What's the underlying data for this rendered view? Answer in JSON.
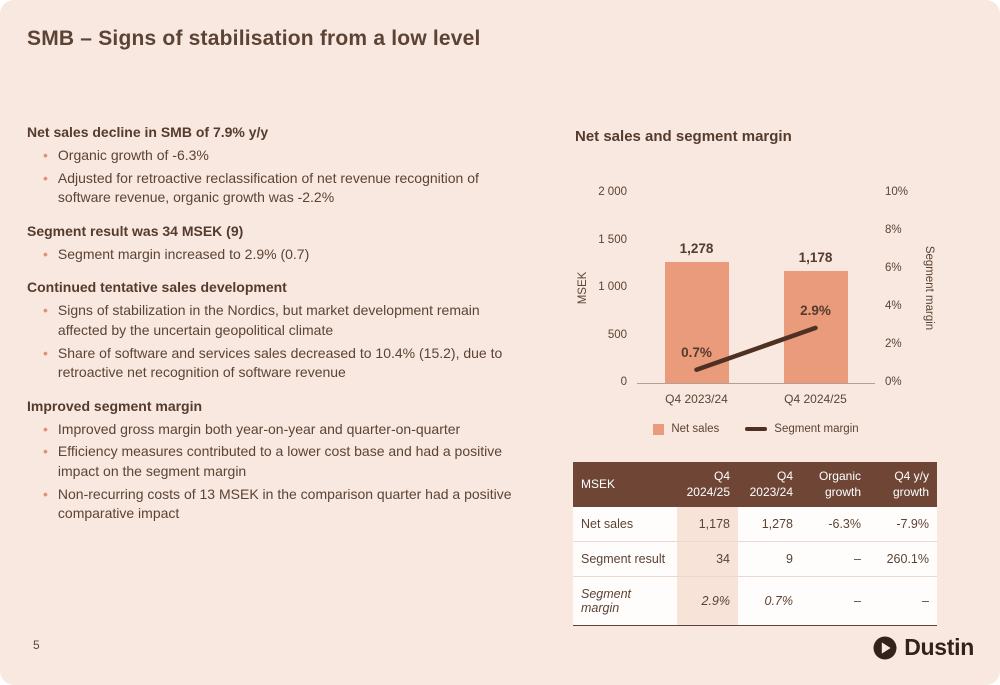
{
  "slide": {
    "title": "SMB – Signs of stabilisation from a low level",
    "page_number": "5"
  },
  "content": {
    "sections": [
      {
        "heading": "Net sales decline in SMB of 7.9% y/y",
        "bullets": [
          "Organic growth of -6.3%",
          "Adjusted for retroactive reclassification of net revenue recognition of software revenue, organic growth was -2.2%"
        ]
      },
      {
        "heading": "Segment result was 34 MSEK (9)",
        "bullets": [
          "Segment margin increased to 2.9% (0.7)"
        ]
      },
      {
        "heading": "Continued tentative sales development",
        "bullets": [
          "Signs of stabilization in the Nordics, but market development remain affected by the uncertain geopolitical climate",
          "Share of software and services sales decreased to 10.4% (15.2), due to retroactive net recognition of software revenue"
        ]
      },
      {
        "heading": "Improved segment margin",
        "bullets": [
          "Improved gross margin both year-on-year and quarter-on-quarter",
          "Efficiency measures contributed to a lower cost base and had a positive impact on the segment margin",
          "Non-recurring costs of 13 MSEK in the comparison quarter had a positive comparative impact"
        ]
      }
    ]
  },
  "chart_data": {
    "type": "bar",
    "title": "Net sales and segment margin",
    "categories": [
      "Q4 2023/24",
      "Q4 2024/25"
    ],
    "series": [
      {
        "name": "Net sales",
        "type": "bar",
        "axis": "left",
        "values": [
          1278,
          1178
        ],
        "value_labels": [
          "1,278",
          "1,178"
        ],
        "color": "#ea9b7c"
      },
      {
        "name": "Segment margin",
        "type": "line",
        "axis": "right",
        "values": [
          0.7,
          2.9
        ],
        "value_labels": [
          "0.7%",
          "2.9%"
        ],
        "color": "#4e3123"
      }
    ],
    "left_axis": {
      "title": "MSEK",
      "min": 0,
      "max": 2000,
      "ticks": [
        {
          "value": 0,
          "label": "0"
        },
        {
          "value": 500,
          "label": "500"
        },
        {
          "value": 1000,
          "label": "1 000"
        },
        {
          "value": 1500,
          "label": "1 500"
        },
        {
          "value": 2000,
          "label": "2 000"
        }
      ]
    },
    "right_axis": {
      "title": "Segment margin",
      "min": 0,
      "max": 10,
      "ticks": [
        {
          "value": 0,
          "label": "0%"
        },
        {
          "value": 2,
          "label": "2%"
        },
        {
          "value": 4,
          "label": "4%"
        },
        {
          "value": 6,
          "label": "6%"
        },
        {
          "value": 8,
          "label": "8%"
        },
        {
          "value": 10,
          "label": "10%"
        }
      ]
    },
    "legend": [
      "Net sales",
      "Segment margin"
    ],
    "legend_position": "bottom",
    "grid": false
  },
  "table": {
    "headers": [
      "MSEK",
      "Q4\n2024/25",
      "Q4\n2023/24",
      "Organic\ngrowth",
      "Q4 y/y\ngrowth"
    ],
    "rows": [
      {
        "label": "Net sales",
        "cells": [
          "1,178",
          "1,278",
          "-6.3%",
          "-7.9%"
        ],
        "italic": false
      },
      {
        "label": "Segment result",
        "cells": [
          "34",
          "9",
          "–",
          "260.1%"
        ],
        "italic": false
      },
      {
        "label": "Segment margin",
        "cells": [
          "2.9%",
          "0.7%",
          "–",
          "–"
        ],
        "italic": true
      }
    ]
  },
  "footer": {
    "logo_text": "Dustin"
  }
}
